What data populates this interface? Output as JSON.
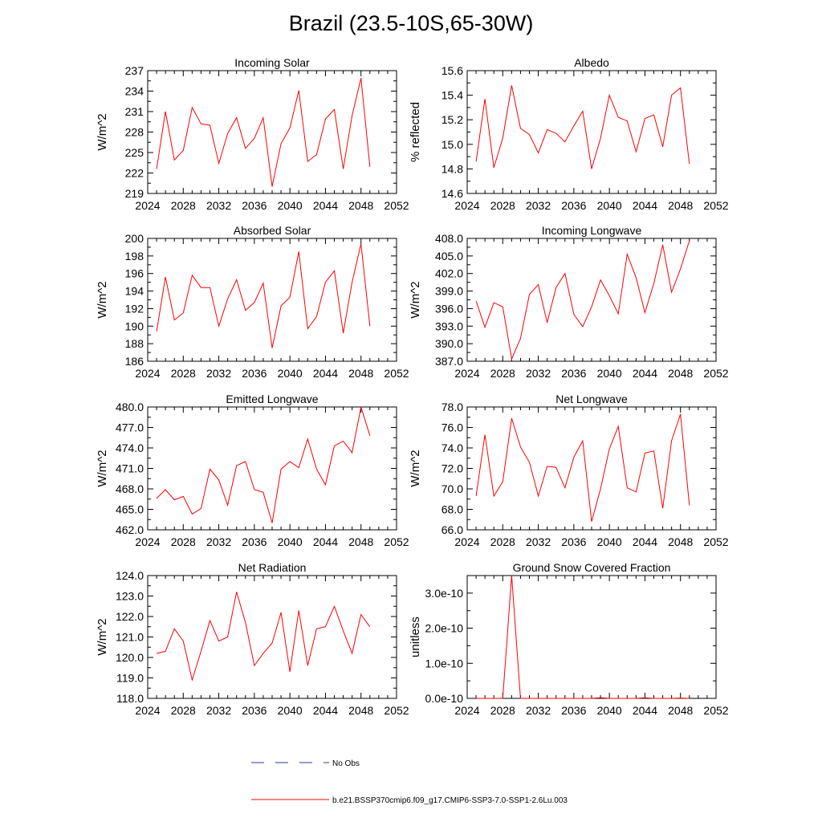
{
  "title": "Brazil (23.5-10S,65-30W)",
  "colors": {
    "model": "#ff0000",
    "obs": "#1f3c99"
  },
  "legend": [
    {
      "label": "No Obs",
      "style": "dashed",
      "color": "#1f3c99"
    },
    {
      "label": "b.e21.BSSP370cmip6.f09_g17.CMIP6-SSP3-7.0-SSP1-2.6Lu.003",
      "style": "solid",
      "color": "#ff0000"
    }
  ],
  "chart_data": [
    {
      "type": "line",
      "title": "Incoming Solar",
      "ylabel": "W/m^2",
      "xlim": [
        2024,
        2052
      ],
      "ylim": [
        219,
        237
      ],
      "xticks": [
        "2024",
        "2028",
        "2032",
        "2036",
        "2040",
        "2044",
        "2048",
        "2052"
      ],
      "yticks": [
        "219",
        "222",
        "225",
        "228",
        "231",
        "234",
        "237"
      ],
      "x": [
        2025,
        2026,
        2027,
        2028,
        2029,
        2030,
        2031,
        2032,
        2033,
        2034,
        2035,
        2036,
        2037,
        2038,
        2039,
        2040,
        2041,
        2042,
        2043,
        2044,
        2045,
        2046,
        2047,
        2048,
        2049
      ],
      "values": [
        222.6,
        231.0,
        223.9,
        225.3,
        231.6,
        229.2,
        229.0,
        223.4,
        227.8,
        230.1,
        225.6,
        227.1,
        230.1,
        220.0,
        226.3,
        228.6,
        234.1,
        223.7,
        224.7,
        229.9,
        231.3,
        222.6,
        230.4,
        235.9,
        222.9
      ]
    },
    {
      "type": "line",
      "title": "Albedo",
      "ylabel": "% reflected",
      "xlim": [
        2024,
        2052
      ],
      "ylim": [
        14.6,
        15.6
      ],
      "xticks": [
        "2024",
        "2028",
        "2032",
        "2036",
        "2040",
        "2044",
        "2048",
        "2052"
      ],
      "yticks": [
        "14.6",
        "14.8",
        "15.0",
        "15.2",
        "15.4",
        "15.6"
      ],
      "x": [
        2025,
        2026,
        2027,
        2028,
        2029,
        2030,
        2031,
        2032,
        2033,
        2034,
        2035,
        2036,
        2037,
        2038,
        2039,
        2040,
        2041,
        2042,
        2043,
        2044,
        2045,
        2046,
        2047,
        2048,
        2049
      ],
      "values": [
        14.86,
        15.37,
        14.81,
        15.05,
        15.48,
        15.13,
        15.08,
        14.93,
        15.12,
        15.09,
        15.02,
        15.15,
        15.27,
        14.8,
        15.05,
        15.4,
        15.22,
        15.19,
        14.94,
        15.21,
        15.24,
        14.98,
        15.4,
        15.46,
        14.84
      ]
    },
    {
      "type": "line",
      "title": "Absorbed Solar",
      "ylabel": "W/m^2",
      "xlim": [
        2024,
        2052
      ],
      "ylim": [
        186,
        200
      ],
      "xticks": [
        "2024",
        "2028",
        "2032",
        "2036",
        "2040",
        "2044",
        "2048",
        "2052"
      ],
      "yticks": [
        "186",
        "188",
        "190",
        "192",
        "194",
        "196",
        "198",
        "200"
      ],
      "x": [
        2025,
        2026,
        2027,
        2028,
        2029,
        2030,
        2031,
        2032,
        2033,
        2034,
        2035,
        2036,
        2037,
        2038,
        2039,
        2040,
        2041,
        2042,
        2043,
        2044,
        2045,
        2046,
        2047,
        2048,
        2049
      ],
      "values": [
        189.4,
        195.6,
        190.7,
        191.5,
        195.8,
        194.4,
        194.4,
        190.0,
        193.1,
        195.3,
        191.8,
        192.7,
        194.9,
        187.5,
        192.3,
        193.3,
        198.5,
        189.7,
        191.1,
        195.0,
        196.3,
        189.2,
        195.0,
        199.4,
        190.0
      ]
    },
    {
      "type": "line",
      "title": "Incoming Longwave",
      "ylabel": "W/m^2",
      "xlim": [
        2024,
        2052
      ],
      "ylim": [
        387,
        408
      ],
      "xticks": [
        "2024",
        "2028",
        "2032",
        "2036",
        "2040",
        "2044",
        "2048",
        "2052"
      ],
      "yticks": [
        "387.0",
        "390.0",
        "393.0",
        "396.0",
        "399.0",
        "402.0",
        "405.0",
        "408.0"
      ],
      "x": [
        2025,
        2026,
        2027,
        2028,
        2029,
        2030,
        2031,
        2032,
        2033,
        2034,
        2035,
        2036,
        2037,
        2038,
        2039,
        2040,
        2041,
        2042,
        2043,
        2044,
        2045,
        2046,
        2047,
        2048,
        2049
      ],
      "values": [
        397.3,
        392.8,
        397.0,
        396.3,
        387.4,
        390.9,
        398.4,
        400.1,
        393.6,
        399.6,
        402.0,
        395.0,
        392.9,
        396.3,
        400.9,
        398.2,
        395.1,
        405.3,
        401.3,
        395.3,
        400.3,
        406.9,
        398.8,
        402.8,
        407.6
      ]
    },
    {
      "type": "line",
      "title": "Emitted Longwave",
      "ylabel": "W/m^2",
      "xlim": [
        2024,
        2052
      ],
      "ylim": [
        462,
        480
      ],
      "xticks": [
        "2024",
        "2028",
        "2032",
        "2036",
        "2040",
        "2044",
        "2048",
        "2052"
      ],
      "yticks": [
        "462.0",
        "465.0",
        "468.0",
        "471.0",
        "474.0",
        "477.0",
        "480.0"
      ],
      "x": [
        2025,
        2026,
        2027,
        2028,
        2029,
        2030,
        2031,
        2032,
        2033,
        2034,
        2035,
        2036,
        2037,
        2038,
        2039,
        2040,
        2041,
        2042,
        2043,
        2044,
        2045,
        2046,
        2047,
        2048,
        2049
      ],
      "values": [
        466.6,
        467.9,
        466.4,
        466.9,
        464.3,
        465.1,
        470.9,
        469.3,
        465.6,
        471.4,
        472.0,
        467.9,
        467.5,
        463.0,
        470.9,
        472.0,
        471.1,
        475.3,
        470.9,
        468.6,
        474.3,
        475.0,
        473.3,
        480.0,
        475.8
      ]
    },
    {
      "type": "line",
      "title": "Net Longwave",
      "ylabel": "W/m^2",
      "xlim": [
        2024,
        2052
      ],
      "ylim": [
        66,
        78
      ],
      "xticks": [
        "2024",
        "2028",
        "2032",
        "2036",
        "2040",
        "2044",
        "2048",
        "2052"
      ],
      "yticks": [
        "66.0",
        "68.0",
        "70.0",
        "72.0",
        "74.0",
        "76.0",
        "78.0"
      ],
      "x": [
        2025,
        2026,
        2027,
        2028,
        2029,
        2030,
        2031,
        2032,
        2033,
        2034,
        2035,
        2036,
        2037,
        2038,
        2039,
        2040,
        2041,
        2042,
        2043,
        2044,
        2045,
        2046,
        2047,
        2048,
        2049
      ],
      "values": [
        69.3,
        75.3,
        69.3,
        70.7,
        76.9,
        74.1,
        72.6,
        69.3,
        72.2,
        72.1,
        70.1,
        73.1,
        74.7,
        66.8,
        70.0,
        73.9,
        76.1,
        70.1,
        69.7,
        73.5,
        73.7,
        68.1,
        74.7,
        77.3,
        68.4
      ]
    },
    {
      "type": "line",
      "title": "Net Radiation",
      "ylabel": "W/m^2",
      "xlim": [
        2024,
        2052
      ],
      "ylim": [
        118,
        124
      ],
      "xticks": [
        "2024",
        "2028",
        "2032",
        "2036",
        "2040",
        "2044",
        "2048",
        "2052"
      ],
      "yticks": [
        "118.0",
        "119.0",
        "120.0",
        "121.0",
        "122.0",
        "123.0",
        "124.0"
      ],
      "x": [
        2025,
        2026,
        2027,
        2028,
        2029,
        2030,
        2031,
        2032,
        2033,
        2034,
        2035,
        2036,
        2037,
        2038,
        2039,
        2040,
        2041,
        2042,
        2043,
        2044,
        2045,
        2046,
        2047,
        2048,
        2049
      ],
      "values": [
        120.2,
        120.3,
        121.4,
        120.8,
        118.9,
        120.3,
        121.8,
        120.8,
        121.0,
        123.2,
        121.7,
        119.6,
        120.2,
        120.7,
        122.2,
        119.3,
        122.3,
        119.6,
        121.4,
        121.5,
        122.5,
        121.3,
        120.2,
        122.1,
        121.5
      ]
    },
    {
      "type": "line",
      "title": "Ground Snow Covered Fraction",
      "ylabel": "unitless",
      "xlim": [
        2024,
        2052
      ],
      "ylim": [
        0,
        3.5e-10
      ],
      "xticks": [
        "2024",
        "2028",
        "2032",
        "2036",
        "2040",
        "2044",
        "2048",
        "2052"
      ],
      "yticks": [
        "0.0e-10",
        "1.0e-10",
        "2.0e-10",
        "3.0e-10"
      ],
      "ytick_values": [
        0,
        1e-10,
        2e-10,
        3e-10
      ],
      "x": [
        2025,
        2026,
        2027,
        2028,
        2029,
        2030,
        2031,
        2032,
        2033,
        2034,
        2035,
        2036,
        2037,
        2038,
        2039,
        2040,
        2041,
        2042,
        2043,
        2044,
        2045,
        2046,
        2047,
        2048,
        2049
      ],
      "values": [
        0,
        0,
        0,
        0,
        3.5e-10,
        0,
        0,
        0,
        0,
        0,
        0,
        0,
        0,
        0,
        2e-12,
        0,
        0,
        0,
        0,
        1.5e-12,
        0,
        0,
        0,
        1e-12,
        0
      ]
    }
  ]
}
